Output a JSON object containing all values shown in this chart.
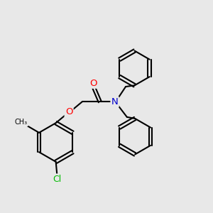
{
  "background_color": "#e8e8e8",
  "bond_color": "#000000",
  "bond_width": 1.5,
  "atom_colors": {
    "O": "#ff0000",
    "N": "#0000cc",
    "Cl": "#00bb00",
    "C": "#000000"
  },
  "font_size": 8.5,
  "figsize": [
    3.0,
    3.0
  ],
  "dpi": 100
}
